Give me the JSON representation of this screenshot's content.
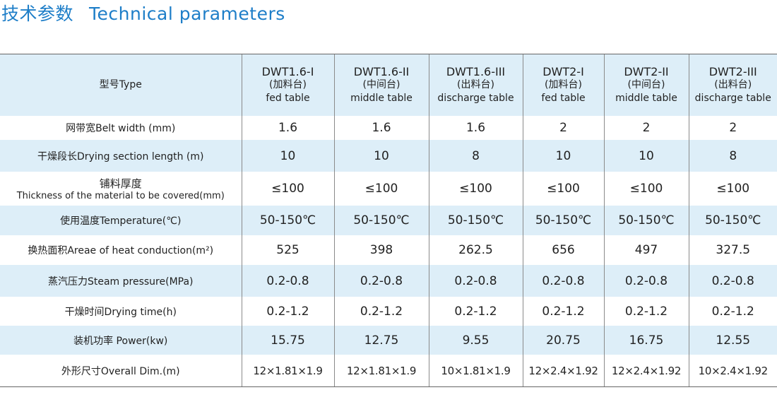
{
  "title": {
    "cn": "技术参数",
    "en": "Technical parameters"
  },
  "table": {
    "type_label": "型号Type",
    "models": [
      {
        "model": "DWT1.6-I",
        "cn": "(加料台)",
        "en": "fed table"
      },
      {
        "model": "DWT1.6-II",
        "cn": "(中间台)",
        "en": "middle table"
      },
      {
        "model": "DWT1.6-III",
        "cn": "(出料台)",
        "en": "discharge table"
      },
      {
        "model": "DWT2-I",
        "cn": "(加料台)",
        "en": "fed table"
      },
      {
        "model": "DWT2-II",
        "cn": "(中间台)",
        "en": "middle table"
      },
      {
        "model": "DWT2-III",
        "cn": "(出料台)",
        "en": "discharge table"
      }
    ],
    "rows": [
      {
        "label": "网带宽Belt width (mm)",
        "values": [
          "1.6",
          "1.6",
          "1.6",
          "2",
          "2",
          "2"
        ]
      },
      {
        "label": "干燥段长Drying section length (m)",
        "values": [
          "10",
          "10",
          "8",
          "10",
          "10",
          "8"
        ]
      },
      {
        "label": "铺料厚度",
        "label2": "Thickness of the material to be covered(mm)",
        "values": [
          "≤100",
          "≤100",
          "≤100",
          "≤100",
          "≤100",
          "≤100"
        ]
      },
      {
        "label": "使用温度Temperature(℃)",
        "values": [
          "50-150℃",
          "50-150℃",
          "50-150℃",
          "50-150℃",
          "50-150℃",
          "50-150℃"
        ]
      },
      {
        "label": "换热面积Areae of heat conduction(m²)",
        "values": [
          "525",
          "398",
          "262.5",
          "656",
          "497",
          "327.5"
        ]
      },
      {
        "label": "蒸汽压力Steam pressure(MPa)",
        "values": [
          "0.2-0.8",
          "0.2-0.8",
          "0.2-0.8",
          "0.2-0.8",
          "0.2-0.8",
          "0.2-0.8"
        ]
      },
      {
        "label": "干燥时间Drying time(h)",
        "values": [
          "0.2-1.2",
          "0.2-1.2",
          "0.2-1.2",
          "0.2-1.2",
          "0.2-1.2",
          "0.2-1.2"
        ]
      },
      {
        "label": "装机功率 Power(kw)",
        "values": [
          "15.75",
          "12.75",
          "9.55",
          "20.75",
          "16.75",
          "12.55"
        ]
      },
      {
        "label": "外形尺寸Overall Dim.(m)",
        "values": [
          "12×1.81×1.9",
          "12×1.81×1.9",
          "10×1.81×1.9",
          "12×2.4×1.92",
          "12×2.4×1.92",
          "10×2.4×1.92"
        ]
      }
    ]
  }
}
